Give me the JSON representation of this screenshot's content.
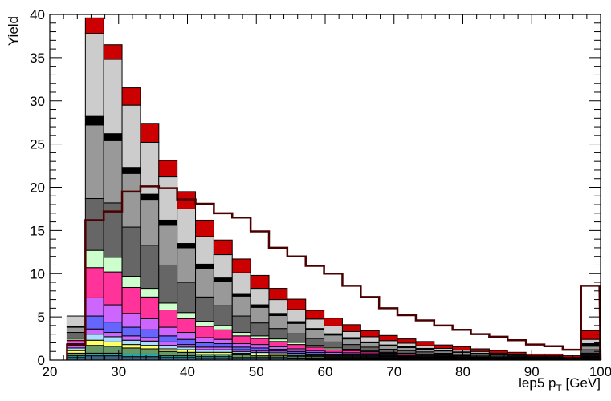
{
  "chart_data": {
    "type": "bar",
    "title": "",
    "xlabel": "lep5 p",
    "xlabel_sub": "T",
    "xlabel_unit": " [GeV]",
    "ylabel": "Yield",
    "xlim": [
      20,
      100
    ],
    "ylim": [
      0,
      40
    ],
    "x_ticks": [
      "20",
      "30",
      "40",
      "50",
      "60",
      "70",
      "80",
      "90",
      "100"
    ],
    "y_ticks": [
      "0",
      "5",
      "10",
      "15",
      "20",
      "25",
      "30",
      "35",
      "40"
    ],
    "bin_width": 2.67,
    "x_bins": [
      22.5,
      25.17,
      27.83,
      30.5,
      33.17,
      35.83,
      38.5,
      41.17,
      43.83,
      46.5,
      49.17,
      51.83,
      54.5,
      57.17,
      59.83,
      62.5,
      65.17,
      67.83,
      70.5,
      73.17,
      75.83,
      78.5,
      81.17,
      83.83,
      86.5,
      89.17,
      91.83,
      94.5,
      97.17
    ],
    "grid": false,
    "legend": "none",
    "stacked_series": [
      {
        "color": "#406080",
        "values": [
          0.3,
          0.5,
          0.5,
          0.4,
          0.4,
          0.3,
          0.3,
          0.2,
          0.2,
          0.2,
          0.2,
          0.2,
          0.15,
          0.1,
          0.1,
          0.1,
          0.1,
          0.1,
          0.1,
          0.05,
          0.05,
          0.05,
          0.05,
          0.05,
          0.05,
          0.05,
          0.05,
          0,
          0.1
        ]
      },
      {
        "color": "#22aaaa",
        "values": [
          0.2,
          0.3,
          0.3,
          0.3,
          0.3,
          0.2,
          0.2,
          0.2,
          0.2,
          0.1,
          0.1,
          0.1,
          0.1,
          0.1,
          0.1,
          0.1,
          0.05,
          0.05,
          0.05,
          0.05,
          0.05,
          0.05,
          0.05,
          0.05,
          0,
          0,
          0,
          0,
          0.1
        ]
      },
      {
        "color": "#669966",
        "values": [
          0.3,
          0.9,
          0.8,
          0.7,
          0.6,
          0.5,
          0.4,
          0.3,
          0.3,
          0.3,
          0.2,
          0.2,
          0.2,
          0.2,
          0.1,
          0.1,
          0.1,
          0.1,
          0.1,
          0.1,
          0.1,
          0.05,
          0.05,
          0.05,
          0.05,
          0.05,
          0.05,
          0,
          0.1
        ]
      },
      {
        "color": "#ffff66",
        "values": [
          0.3,
          0.6,
          0.5,
          0.4,
          0.4,
          0.3,
          0.3,
          0.2,
          0.2,
          0.2,
          0.2,
          0.15,
          0.1,
          0.1,
          0.1,
          0.1,
          0.1,
          0.05,
          0.05,
          0.05,
          0.05,
          0.05,
          0.05,
          0,
          0,
          0,
          0,
          0,
          0.05
        ]
      },
      {
        "color": "#aaddff",
        "values": [
          0.3,
          0.7,
          0.6,
          0.5,
          0.5,
          0.4,
          0.3,
          0.3,
          0.3,
          0.2,
          0.2,
          0.2,
          0.15,
          0.1,
          0.1,
          0.1,
          0.1,
          0.1,
          0.05,
          0.05,
          0.05,
          0.05,
          0,
          0,
          0,
          0,
          0,
          0,
          0.05
        ]
      },
      {
        "color": "#cc66ff",
        "values": [
          0.3,
          0.6,
          0.5,
          0.5,
          0.4,
          0.4,
          0.3,
          0.3,
          0.3,
          0.2,
          0.2,
          0.2,
          0.1,
          0.1,
          0.1,
          0.1,
          0.1,
          0.05,
          0.05,
          0.05,
          0.05,
          0.05,
          0,
          0,
          0,
          0,
          0,
          0,
          0.05
        ]
      },
      {
        "color": "#6666ff",
        "values": [
          0.2,
          1.5,
          1.2,
          1.0,
          0.9,
          0.7,
          0.6,
          0.5,
          0.4,
          0.3,
          0.3,
          0.2,
          0.2,
          0.2,
          0.1,
          0.1,
          0.1,
          0.1,
          0.05,
          0.05,
          0.05,
          0.05,
          0.05,
          0,
          0,
          0,
          0,
          0,
          0.05
        ]
      },
      {
        "color": "#cc66ff",
        "values": [
          0.2,
          2.1,
          2.0,
          1.6,
          1.3,
          1.0,
          0.8,
          0.6,
          0.5,
          0.4,
          0.4,
          0.3,
          0.3,
          0.2,
          0.2,
          0.15,
          0.1,
          0.1,
          0.1,
          0.1,
          0.05,
          0.05,
          0.05,
          0.05,
          0.05,
          0,
          0,
          0,
          0.1
        ]
      },
      {
        "color": "#ff3399",
        "values": [
          0.2,
          3.5,
          3.8,
          3.0,
          2.5,
          2.0,
          1.6,
          1.3,
          1.1,
          0.9,
          0.7,
          0.6,
          0.5,
          0.4,
          0.3,
          0.25,
          0.2,
          0.15,
          0.15,
          0.1,
          0.1,
          0.1,
          0.05,
          0.05,
          0.05,
          0.05,
          0.05,
          0,
          0.1
        ]
      },
      {
        "color": "#ccffcc",
        "values": [
          0.2,
          2.0,
          1.7,
          1.3,
          1.0,
          0.8,
          0.7,
          0.6,
          0.5,
          0.4,
          0.3,
          0.3,
          0.25,
          0.2,
          0.2,
          0.15,
          0.1,
          0.1,
          0.1,
          0.1,
          0.05,
          0.05,
          0.05,
          0.05,
          0.05,
          0,
          0,
          0,
          0.1
        ]
      },
      {
        "color": "#666666",
        "values": [
          0.7,
          6.0,
          6.3,
          5.7,
          5.0,
          4.4,
          3.5,
          2.8,
          2.3,
          1.9,
          1.5,
          1.2,
          1.0,
          0.8,
          0.7,
          0.55,
          0.45,
          0.35,
          0.3,
          0.25,
          0.2,
          0.15,
          0.15,
          0.1,
          0.1,
          0.1,
          0.1,
          0.1,
          0.4
        ]
      },
      {
        "color": "#999999",
        "values": [
          0.6,
          8.5,
          7.2,
          6.2,
          5.3,
          4.6,
          4.0,
          3.3,
          2.8,
          2.3,
          1.8,
          1.5,
          1.2,
          1.0,
          0.8,
          0.65,
          0.5,
          0.4,
          0.35,
          0.3,
          0.25,
          0.2,
          0.2,
          0.15,
          0.1,
          0.1,
          0.1,
          0.1,
          0.4
        ]
      },
      {
        "color": "#000000",
        "values": [
          0.1,
          1.0,
          0.8,
          0.7,
          0.6,
          0.6,
          0.5,
          0.5,
          0.4,
          0.3,
          0.3,
          0.25,
          0.2,
          0.15,
          0.15,
          0.15,
          0.1,
          0.1,
          0.1,
          0.1,
          0.05,
          0.05,
          0.05,
          0.05,
          0.05,
          0.05,
          0.05,
          0,
          0.3
        ]
      },
      {
        "color": "#cccccc",
        "values": [
          1.2,
          9.6,
          8.6,
          7.2,
          6.0,
          5.0,
          4.0,
          3.2,
          2.7,
          2.4,
          1.9,
          1.6,
          1.4,
          1.1,
          0.9,
          0.7,
          0.6,
          0.5,
          0.4,
          0.3,
          0.25,
          0.2,
          0.2,
          0.2,
          0.1,
          0.1,
          0.1,
          0.1,
          0.5
        ]
      },
      {
        "color": "#cc0000",
        "values": [
          0.0,
          1.8,
          1.7,
          2.0,
          2.2,
          1.9,
          2.0,
          1.9,
          1.7,
          1.6,
          1.5,
          1.3,
          1.2,
          1.0,
          0.9,
          0.8,
          0.7,
          0.6,
          0.5,
          0.5,
          0.4,
          0.4,
          0.3,
          0.3,
          0.3,
          0.2,
          0.2,
          0.2,
          1.0
        ]
      }
    ],
    "overlay_line": {
      "color": "#4a0000",
      "values": [
        1.8,
        16.2,
        17.2,
        19.5,
        20.1,
        19.9,
        18.6,
        18.1,
        17.0,
        16.5,
        14.9,
        13.0,
        12.0,
        10.9,
        10.0,
        8.6,
        7.3,
        6.0,
        5.2,
        4.6,
        4.0,
        3.5,
        3.0,
        2.7,
        2.3,
        1.8,
        1.6,
        1.2,
        8.6
      ]
    }
  }
}
